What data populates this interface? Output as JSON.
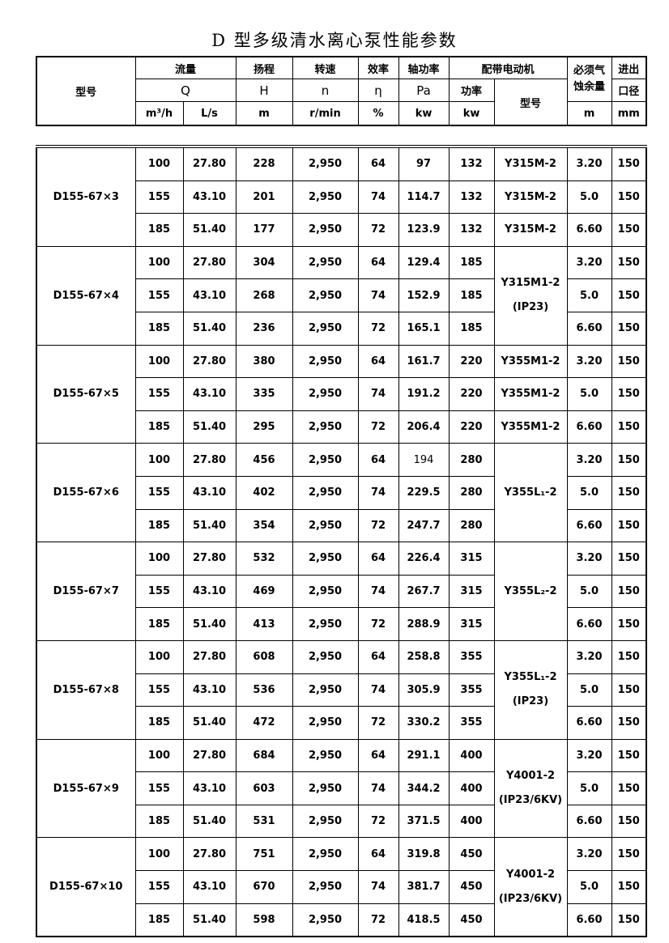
{
  "title": "D 型多级清水离心泵性能参数",
  "colors": {
    "background": "#ffffff",
    "border": "#000000",
    "text": "#000000"
  },
  "header": {
    "model": "型号",
    "flow": "流量",
    "flow_symbol": "Q",
    "flow_unit_m3h": "m³/h",
    "flow_unit_ls": "L/s",
    "head": "扬程",
    "head_symbol": "H",
    "head_unit": "m",
    "speed": "转速",
    "speed_symbol": "n",
    "speed_unit": "r/min",
    "efficiency": "效率",
    "efficiency_symbol": "η",
    "efficiency_unit": "%",
    "shaft_power": "轴功率",
    "shaft_power_symbol": "Pa",
    "shaft_power_unit": "kw",
    "motor": "配带电动机",
    "motor_power": "功率",
    "motor_power_unit": "kw",
    "motor_model": "型号",
    "npsh_line1": "必须气",
    "npsh_line2": "蚀余量",
    "npsh_unit": "m",
    "port_line1": "进出",
    "port_line2": "口径",
    "port_unit": "mm"
  },
  "groups": [
    {
      "model": "D155-67×3",
      "motor_merged": null,
      "rows": [
        [
          "100",
          "27.80",
          "228",
          "2,950",
          "64",
          "97",
          "132",
          "Y315M-2",
          "3.20",
          "150"
        ],
        [
          "155",
          "43.10",
          "201",
          "2,950",
          "74",
          "114.7",
          "132",
          "Y315M-2",
          "5.0",
          "150"
        ],
        [
          "185",
          "51.40",
          "177",
          "2,950",
          "72",
          "123.9",
          "132",
          "Y315M-2",
          "6.60",
          "150"
        ]
      ]
    },
    {
      "model": "D155-67×4",
      "motor_merged": [
        "Y315M1-2",
        "(IP23)"
      ],
      "rows": [
        [
          "100",
          "27.80",
          "304",
          "2,950",
          "64",
          "129.4",
          "185",
          null,
          "3.20",
          "150"
        ],
        [
          "155",
          "43.10",
          "268",
          "2,950",
          "74",
          "152.9",
          "185",
          null,
          "5.0",
          "150"
        ],
        [
          "185",
          "51.40",
          "236",
          "2,950",
          "72",
          "165.1",
          "185",
          null,
          "6.60",
          "150"
        ]
      ]
    },
    {
      "model": "D155-67×5",
      "motor_merged": null,
      "rows": [
        [
          "100",
          "27.80",
          "380",
          "2,950",
          "64",
          "161.7",
          "220",
          "Y355M1-2",
          "3.20",
          "150"
        ],
        [
          "155",
          "43.10",
          "335",
          "2,950",
          "74",
          "191.2",
          "220",
          "Y355M1-2",
          "5.0",
          "150"
        ],
        [
          "185",
          "51.40",
          "295",
          "2,950",
          "72",
          "206.4",
          "220",
          "Y355M1-2",
          "6.60",
          "150"
        ]
      ]
    },
    {
      "model": "D155-67×6",
      "motor_merged": [
        "Y355L₁-2"
      ],
      "muted_cells": [
        {
          "row": 0,
          "col": 5
        }
      ],
      "rows": [
        [
          "100",
          "27.80",
          "456",
          "2,950",
          "64",
          "194",
          "280",
          null,
          "3.20",
          "150"
        ],
        [
          "155",
          "43.10",
          "402",
          "2,950",
          "74",
          "229.5",
          "280",
          null,
          "5.0",
          "150"
        ],
        [
          "185",
          "51.40",
          "354",
          "2,950",
          "72",
          "247.7",
          "280",
          null,
          "6.60",
          "150"
        ]
      ]
    },
    {
      "model": "D155-67×7",
      "motor_merged": [
        "Y355L₂-2"
      ],
      "rows": [
        [
          "100",
          "27.80",
          "532",
          "2,950",
          "64",
          "226.4",
          "315",
          null,
          "3.20",
          "150"
        ],
        [
          "155",
          "43.10",
          "469",
          "2,950",
          "74",
          "267.7",
          "315",
          null,
          "5.0",
          "150"
        ],
        [
          "185",
          "51.40",
          "413",
          "2,950",
          "72",
          "288.9",
          "315",
          null,
          "6.60",
          "150"
        ]
      ]
    },
    {
      "model": "D155-67×8",
      "motor_merged": [
        "Y355L₁-2",
        "(IP23)"
      ],
      "rows": [
        [
          "100",
          "27.80",
          "608",
          "2,950",
          "64",
          "258.8",
          "355",
          null,
          "3.20",
          "150"
        ],
        [
          "155",
          "43.10",
          "536",
          "2,950",
          "74",
          "305.9",
          "355",
          null,
          "5.0",
          "150"
        ],
        [
          "185",
          "51.40",
          "472",
          "2,950",
          "72",
          "330.2",
          "355",
          null,
          "6.60",
          "150"
        ]
      ]
    },
    {
      "model": "D155-67×9",
      "motor_merged": [
        "Y4001-2",
        "(IP23/6KV)"
      ],
      "rows": [
        [
          "100",
          "27.80",
          "684",
          "2,950",
          "64",
          "291.1",
          "400",
          null,
          "3.20",
          "150"
        ],
        [
          "155",
          "43.10",
          "603",
          "2,950",
          "74",
          "344.2",
          "400",
          null,
          "5.0",
          "150"
        ],
        [
          "185",
          "51.40",
          "531",
          "2,950",
          "72",
          "371.5",
          "400",
          null,
          "6.60",
          "150"
        ]
      ]
    },
    {
      "model": "D155-67×10",
      "motor_merged": [
        "Y4001-2",
        "(IP23/6KV)"
      ],
      "rows": [
        [
          "100",
          "27.80",
          "751",
          "2,950",
          "64",
          "319.8",
          "450",
          null,
          "3.20",
          "150"
        ],
        [
          "155",
          "43.10",
          "670",
          "2,950",
          "74",
          "381.7",
          "450",
          null,
          "5.0",
          "150"
        ],
        [
          "185",
          "51.40",
          "598",
          "2,950",
          "72",
          "418.5",
          "450",
          null,
          "6.60",
          "150"
        ]
      ]
    }
  ]
}
